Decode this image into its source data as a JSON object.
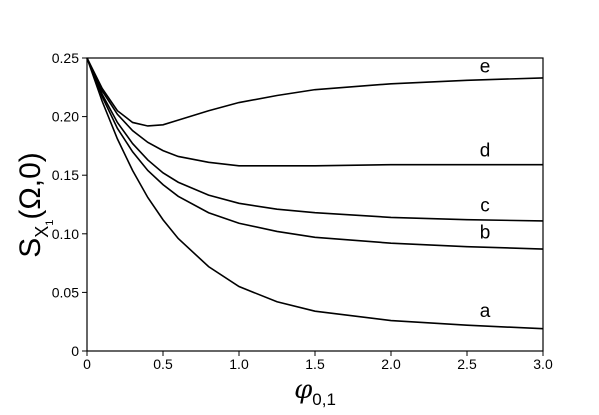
{
  "chart_data": {
    "type": "line",
    "x_label": {
      "main": "φ",
      "sub": "0,1"
    },
    "y_label": {
      "main": "S",
      "sub": "X",
      "subsub": "1",
      "rest": "(Ω,0)"
    },
    "x": [
      0,
      0.1,
      0.2,
      0.3,
      0.4,
      0.5,
      0.6,
      0.8,
      1.0,
      1.25,
      1.5,
      2.0,
      2.5,
      3.0
    ],
    "series": [
      {
        "name": "e",
        "color": "#000000",
        "values": [
          0.25,
          0.224,
          0.205,
          0.195,
          0.192,
          0.193,
          0.197,
          0.205,
          0.212,
          0.218,
          0.223,
          0.228,
          0.231,
          0.233
        ]
      },
      {
        "name": "d",
        "color": "#000000",
        "values": [
          0.25,
          0.222,
          0.202,
          0.188,
          0.178,
          0.171,
          0.166,
          0.161,
          0.158,
          0.158,
          0.158,
          0.159,
          0.159,
          0.159
        ]
      },
      {
        "name": "c",
        "color": "#000000",
        "values": [
          0.25,
          0.219,
          0.195,
          0.177,
          0.163,
          0.152,
          0.144,
          0.133,
          0.126,
          0.121,
          0.118,
          0.114,
          0.112,
          0.111
        ]
      },
      {
        "name": "b",
        "color": "#000000",
        "values": [
          0.25,
          0.217,
          0.19,
          0.17,
          0.154,
          0.142,
          0.132,
          0.118,
          0.109,
          0.102,
          0.097,
          0.092,
          0.089,
          0.087
        ]
      },
      {
        "name": "a",
        "color": "#000000",
        "values": [
          0.25,
          0.213,
          0.181,
          0.154,
          0.131,
          0.112,
          0.096,
          0.072,
          0.055,
          0.042,
          0.034,
          0.026,
          0.022,
          0.019
        ]
      }
    ],
    "xlim": [
      0,
      3.0
    ],
    "xticks": [
      0,
      0.5,
      {
        "value": 1.0,
        "label": "1.0"
      },
      1.5,
      {
        "value": 2.0,
        "label": "2.0"
      },
      2.5,
      {
        "value": 3.0,
        "label": "3.0"
      }
    ],
    "ylim": [
      0,
      0.25
    ],
    "yticks": [
      0,
      0.05,
      {
        "value": 0.1,
        "label": "0.10"
      },
      0.15,
      {
        "value": 0.2,
        "label": "0.20"
      },
      0.25
    ],
    "grid": false
  }
}
